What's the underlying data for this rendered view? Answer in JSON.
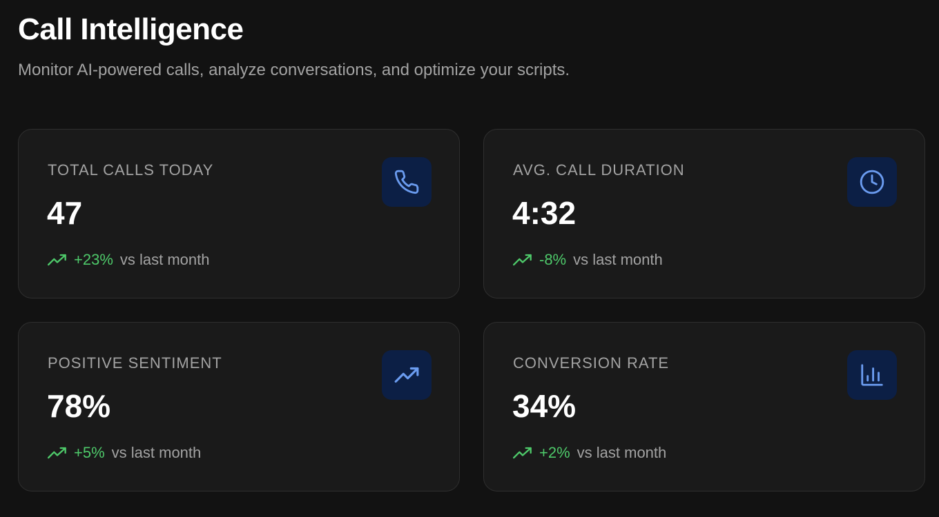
{
  "header": {
    "title": "Call Intelligence",
    "subtitle": "Monitor AI-powered calls, analyze conversations, and optimize your scripts."
  },
  "colors": {
    "accent": "#6b9cf0",
    "positive": "#4ec96a",
    "icon_bg": "#0c1f45"
  },
  "stats": [
    {
      "label": "TOTAL CALLS TODAY",
      "value": "47",
      "change": "+23%",
      "comparison": "vs last month",
      "icon": "phone-icon"
    },
    {
      "label": "AVG. CALL DURATION",
      "value": "4:32",
      "change": "-8%",
      "comparison": "vs last month",
      "icon": "clock-icon"
    },
    {
      "label": "POSITIVE SENTIMENT",
      "value": "78%",
      "change": "+5%",
      "comparison": "vs last month",
      "icon": "trending-up-icon"
    },
    {
      "label": "CONVERSION RATE",
      "value": "34%",
      "change": "+2%",
      "comparison": "vs last month",
      "icon": "bar-chart-icon"
    }
  ]
}
